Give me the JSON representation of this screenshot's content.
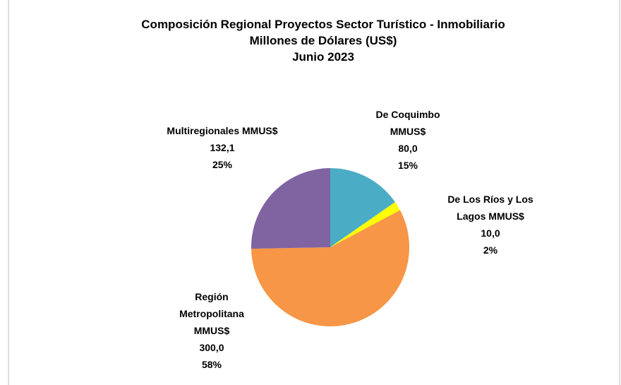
{
  "chart_data": {
    "type": "pie",
    "title": [
      "Composición Regional Proyectos Sector Turístico - Inmobiliario",
      "Millones de Dólares (US$)",
      "Junio 2023"
    ],
    "categories": [
      "De Coquimbo",
      "De Los Ríos y Los Lagos",
      "Región Metropolitana",
      "Multiregionales"
    ],
    "unit_label": "MMUS$",
    "values": [
      80.0,
      10.0,
      300.0,
      132.1
    ],
    "value_labels": [
      "80,0",
      "10,0",
      "300,0",
      "132,1"
    ],
    "percent_labels": [
      "15%",
      "2%",
      "58%",
      "25%"
    ],
    "colors": [
      "#4bacc6",
      "#ffff00",
      "#f79646",
      "#8064a2"
    ]
  }
}
